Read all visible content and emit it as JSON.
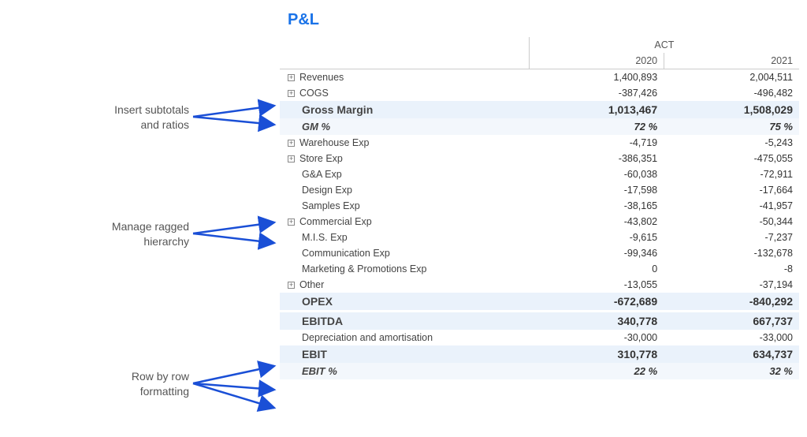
{
  "colors": {
    "accent": "#1a73e8",
    "accent_dark": "#113a8c",
    "highlight_bg": "#eaf2fb",
    "highlight_bg_light": "#f3f7fc",
    "arrow": "#1a4fd6",
    "annotation_text": "#555555",
    "grid_border": "#cccccc"
  },
  "annotations": {
    "subtotals": "Insert subtotals\nand ratios",
    "ragged": "Manage ragged\nhierarchy",
    "rowfmt": "Row by row\nformatting"
  },
  "report": {
    "title": "P&L",
    "header": {
      "group_label": "ACT",
      "years": [
        "2020",
        "2021"
      ]
    },
    "rows": [
      {
        "type": "data",
        "indent": 0,
        "expand": true,
        "label": "Revenues",
        "v1": "1,400,893",
        "v2": "2,004,511"
      },
      {
        "type": "data",
        "indent": 0,
        "expand": true,
        "label": "COGS",
        "v1": "-387,426",
        "v2": "-496,482"
      },
      {
        "type": "hl",
        "indent": 1,
        "label": "Gross Margin",
        "v1": "1,013,467",
        "v2": "1,508,029"
      },
      {
        "type": "hli",
        "indent": 1,
        "label": "GM %",
        "v1": "72 %",
        "v2": "75 %"
      },
      {
        "type": "data",
        "indent": 0,
        "expand": true,
        "label": "Warehouse Exp",
        "v1": "-4,719",
        "v2": "-5,243"
      },
      {
        "type": "data",
        "indent": 0,
        "expand": true,
        "label": "Store Exp",
        "v1": "-386,351",
        "v2": "-475,055"
      },
      {
        "type": "data",
        "indent": 1,
        "expand": false,
        "label": "G&A Exp",
        "v1": "-60,038",
        "v2": "-72,911"
      },
      {
        "type": "data",
        "indent": 1,
        "expand": false,
        "label": "Design Exp",
        "v1": "-17,598",
        "v2": "-17,664"
      },
      {
        "type": "data",
        "indent": 1,
        "expand": false,
        "label": "Samples Exp",
        "v1": "-38,165",
        "v2": "-41,957"
      },
      {
        "type": "data",
        "indent": 0,
        "expand": true,
        "label": "Commercial Exp",
        "v1": "-43,802",
        "v2": "-50,344"
      },
      {
        "type": "data",
        "indent": 1,
        "expand": false,
        "label": "M.I.S. Exp",
        "v1": "-9,615",
        "v2": "-7,237"
      },
      {
        "type": "data",
        "indent": 1,
        "expand": false,
        "label": "Communication Exp",
        "v1": "-99,346",
        "v2": "-132,678"
      },
      {
        "type": "data",
        "indent": 1,
        "expand": false,
        "label": "Marketing & Promotions Exp",
        "v1": "0",
        "v2": "-8"
      },
      {
        "type": "data",
        "indent": 0,
        "expand": true,
        "label": "Other",
        "v1": "-13,055",
        "v2": "-37,194"
      },
      {
        "type": "hl",
        "indent": 1,
        "label": "OPEX",
        "v1": "-672,689",
        "v2": "-840,292"
      },
      {
        "type": "spacer"
      },
      {
        "type": "hl",
        "indent": 1,
        "label": "EBITDA",
        "v1": "340,778",
        "v2": "667,737"
      },
      {
        "type": "data",
        "indent": 1,
        "expand": false,
        "label": "Depreciation and amortisation",
        "v1": "-30,000",
        "v2": "-33,000"
      },
      {
        "type": "hl",
        "indent": 1,
        "label": "EBIT",
        "v1": "310,778",
        "v2": "634,737"
      },
      {
        "type": "hli",
        "indent": 1,
        "label": "EBIT %",
        "v1": "22 %",
        "v2": "32 %"
      }
    ]
  }
}
